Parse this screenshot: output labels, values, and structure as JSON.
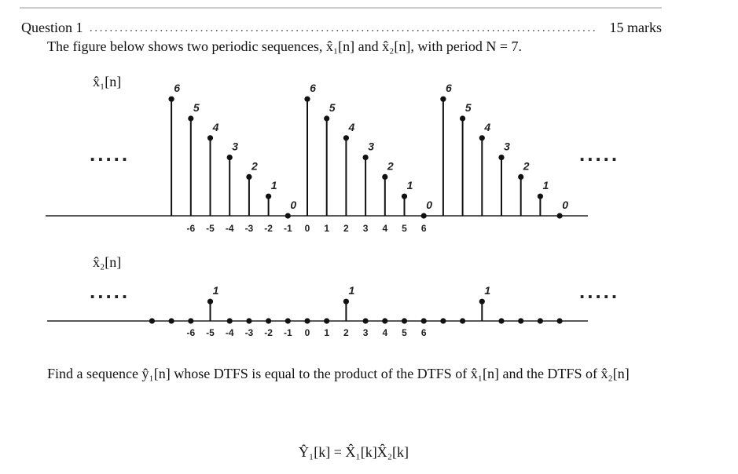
{
  "header": {
    "question": "Question 1",
    "marks": "15 marks"
  },
  "intro": "The figure below shows two periodic sequences, x̂₁[n] and x̂₂[n], with period N = 7.",
  "figures": [
    {
      "label": "x̂₁[n]",
      "ellipsis": ".....",
      "n": [
        -7,
        -6,
        -5,
        -4,
        -3,
        -2,
        -1,
        0,
        1,
        2,
        3,
        4,
        5,
        6,
        7,
        8,
        9,
        10,
        11,
        12,
        13
      ],
      "values": [
        6,
        5,
        4,
        3,
        2,
        1,
        0,
        6,
        5,
        4,
        3,
        2,
        1,
        0,
        6,
        5,
        4,
        3,
        2,
        1,
        0
      ],
      "xticks": [
        -6,
        -5,
        -4,
        -3,
        -2,
        -1,
        0,
        1,
        2,
        3,
        4,
        5,
        6
      ]
    },
    {
      "label": "x̂₂[n]",
      "ellipsis": ".....",
      "n": [
        -8,
        -7,
        -6,
        -5,
        -4,
        -3,
        -2,
        -1,
        0,
        1,
        2,
        3,
        4,
        5,
        6,
        7,
        8,
        9,
        10,
        11,
        12,
        13
      ],
      "values": [
        0,
        0,
        0,
        1,
        0,
        0,
        0,
        0,
        0,
        0,
        1,
        0,
        0,
        0,
        0,
        0,
        0,
        1,
        0,
        0,
        0,
        0
      ],
      "value_labels": [
        null,
        null,
        null,
        "1",
        null,
        null,
        null,
        null,
        null,
        null,
        "1",
        null,
        null,
        null,
        null,
        null,
        null,
        "1",
        null,
        null,
        null,
        null
      ],
      "xticks": [
        -6,
        -5,
        -4,
        -3,
        -2,
        -1,
        0,
        1,
        2,
        3,
        4,
        5,
        6
      ]
    }
  ],
  "question_text": "Find a sequence ŷ₁[n] whose DTFS is equal to the product of the DTFS of x̂₁[n] and the DTFS of x̂₂[n]",
  "formula": "Ŷ₁[k] = X̂₁[k]X̂₂[k]"
}
